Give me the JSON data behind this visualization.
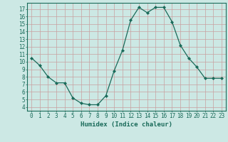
{
  "x": [
    0,
    1,
    2,
    3,
    4,
    5,
    6,
    7,
    8,
    9,
    10,
    11,
    12,
    13,
    14,
    15,
    16,
    17,
    18,
    19,
    20,
    21,
    22,
    23
  ],
  "y": [
    10.5,
    9.5,
    8.0,
    7.2,
    7.2,
    5.2,
    4.5,
    4.3,
    4.3,
    5.5,
    8.8,
    11.5,
    15.5,
    17.2,
    16.5,
    17.2,
    17.2,
    15.3,
    12.2,
    10.5,
    9.3,
    7.8,
    7.8,
    7.8
  ],
  "xlabel": "Humidex (Indice chaleur)",
  "xlim": [
    -0.5,
    23.5
  ],
  "ylim": [
    3.5,
    17.8
  ],
  "yticks": [
    4,
    5,
    6,
    7,
    8,
    9,
    10,
    11,
    12,
    13,
    14,
    15,
    16,
    17
  ],
  "xticks": [
    0,
    1,
    2,
    3,
    4,
    5,
    6,
    7,
    8,
    9,
    10,
    11,
    12,
    13,
    14,
    15,
    16,
    17,
    18,
    19,
    20,
    21,
    22,
    23
  ],
  "line_color": "#1a6b5a",
  "bg_color": "#cce8e4",
  "grid_color": "#b0b0b0",
  "grid_minor_color": "#d0d0d0",
  "tick_fontsize": 5.5,
  "label_fontsize": 6.5
}
